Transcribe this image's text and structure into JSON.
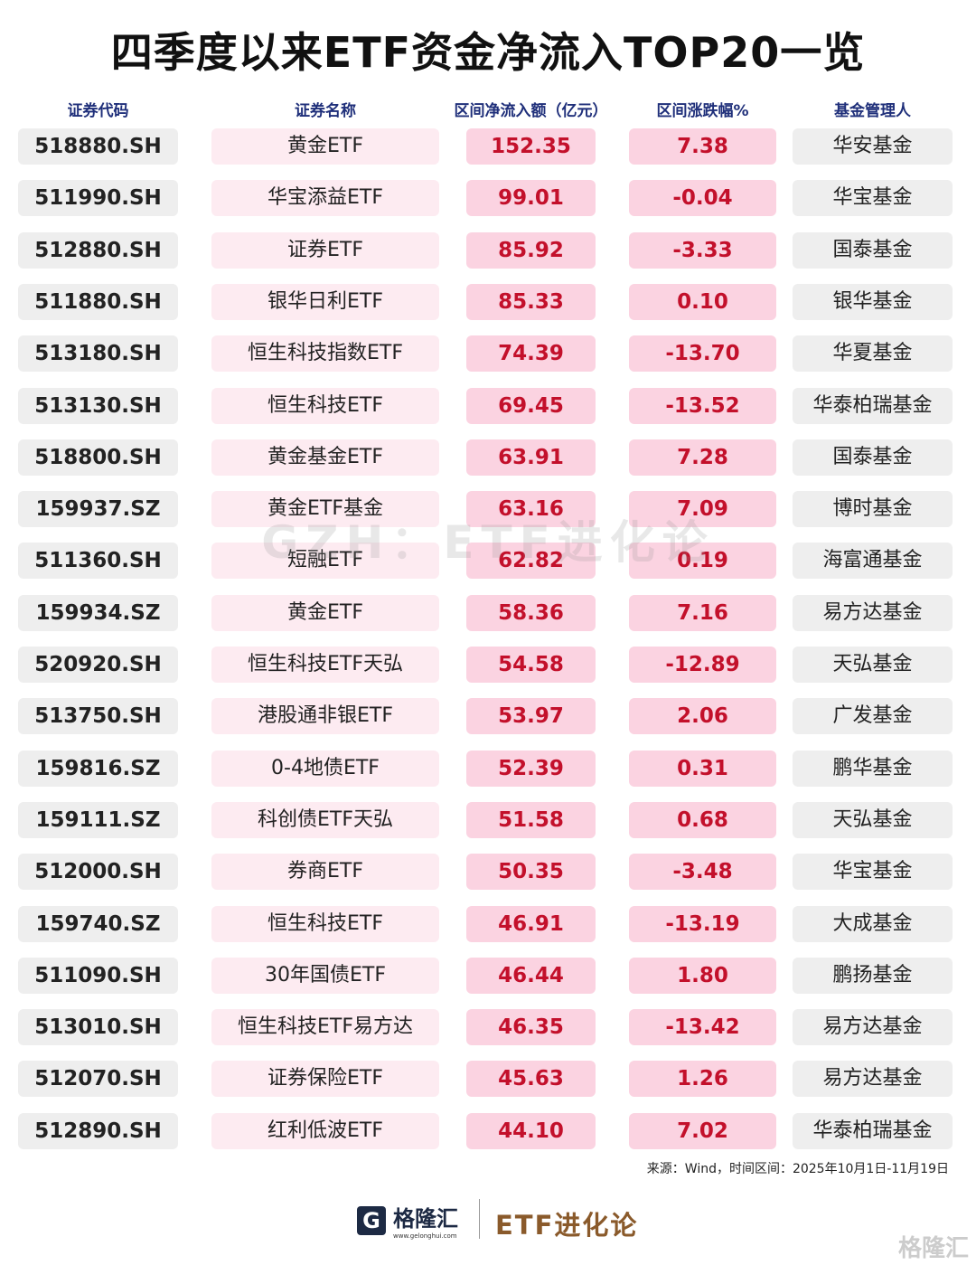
{
  "title": "四季度以来ETF资金净流入TOP20一览",
  "headers": [
    "证券代码",
    "证券名称",
    "区间净流入额（亿元）",
    "区间涨跌幅%",
    "基金管理人"
  ],
  "rows": [
    [
      "518880.SH",
      "黄金ETF",
      "152.35",
      "7.38",
      "华安基金"
    ],
    [
      "511990.SH",
      "华宝添益ETF",
      "99.01",
      "-0.04",
      "华宝基金"
    ],
    [
      "512880.SH",
      "证券ETF",
      "85.92",
      "-3.33",
      "国泰基金"
    ],
    [
      "511880.SH",
      "银华日利ETF",
      "85.33",
      "0.10",
      "银华基金"
    ],
    [
      "513180.SH",
      "恒生科技指数ETF",
      "74.39",
      "-13.70",
      "华夏基金"
    ],
    [
      "513130.SH",
      "恒生科技ETF",
      "69.45",
      "-13.52",
      "华泰柏瑞基金"
    ],
    [
      "518800.SH",
      "黄金基金ETF",
      "63.91",
      "7.28",
      "国泰基金"
    ],
    [
      "159937.SZ",
      "黄金ETF基金",
      "63.16",
      "7.09",
      "博时基金"
    ],
    [
      "511360.SH",
      "短融ETF",
      "62.82",
      "0.19",
      "海富通基金"
    ],
    [
      "159934.SZ",
      "黄金ETF",
      "58.36",
      "7.16",
      "易方达基金"
    ],
    [
      "520920.SH",
      "恒生科技ETF天弘",
      "54.58",
      "-12.89",
      "天弘基金"
    ],
    [
      "513750.SH",
      "港股通非银ETF",
      "53.97",
      "2.06",
      "广发基金"
    ],
    [
      "159816.SZ",
      "0-4地债ETF",
      "52.39",
      "0.31",
      "鹏华基金"
    ],
    [
      "159111.SZ",
      "科创债ETF天弘",
      "51.58",
      "0.68",
      "天弘基金"
    ],
    [
      "512000.SH",
      "券商ETF",
      "50.35",
      "-3.48",
      "华宝基金"
    ],
    [
      "159740.SZ",
      "恒生科技ETF",
      "46.91",
      "-13.19",
      "大成基金"
    ],
    [
      "511090.SH",
      "30年国债ETF",
      "46.44",
      "1.80",
      "鹏扬基金"
    ],
    [
      "513010.SH",
      "恒生科技ETF易方达",
      "46.35",
      "-13.42",
      "易方达基金"
    ],
    [
      "512070.SH",
      "证券保险ETF",
      "45.63",
      "1.26",
      "易方达基金"
    ],
    [
      "512890.SH",
      "红利低波ETF",
      "44.10",
      "7.02",
      "华泰柏瑞基金"
    ]
  ],
  "source": "来源：Wind，时间区间：2025年10月1日-11月19日",
  "watermark": "GZH：ETF进化论",
  "footer": {
    "brand": "格隆汇",
    "url": "www.gelonghui.com",
    "account": "ETF进化论",
    "corner_watermark": "格隆汇"
  },
  "colors": {
    "value_red": "#c3102b",
    "header_blue": "#1f2f7a",
    "brown": "#8a5a2b"
  }
}
